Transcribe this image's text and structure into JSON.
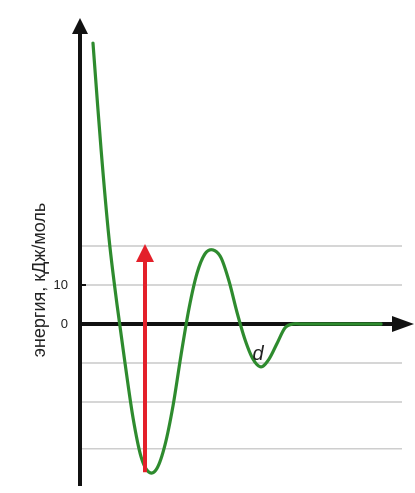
{
  "chart_data": {
    "type": "line",
    "ylabel": "энергия, кДж/моль",
    "xlabel": "d",
    "ytick_labels": [
      {
        "value": 10,
        "label": "10"
      },
      {
        "value": 0,
        "label": "0"
      }
    ],
    "gridlines_y": [
      20,
      10,
      -10,
      -20,
      -32
    ],
    "ylim": [
      -40,
      78
    ],
    "series": [
      {
        "color": "#2e8b2e",
        "x": [
          0.0,
          0.2,
          0.4,
          0.6,
          0.8,
          1.0,
          1.2,
          1.4,
          1.6,
          1.8,
          2.0,
          2.2,
          2.4,
          2.6,
          2.8,
          3.0,
          3.2,
          3.4,
          3.6,
          3.8,
          4.0,
          4.2,
          4.4,
          4.6,
          4.8,
          5.0,
          5.2,
          5.4,
          5.6,
          5.8,
          6.0,
          6.2,
          6.4,
          6.6,
          6.8,
          7.0,
          7.2
        ],
        "y": [
          72,
          45,
          22,
          5,
          -10,
          -24,
          -34,
          -38,
          -37,
          -31,
          -21,
          -8,
          4,
          13,
          18,
          19,
          17,
          11,
          3,
          -4,
          -9,
          -11,
          -9,
          -5,
          -1,
          0,
          0,
          0,
          0,
          0,
          0,
          0,
          0,
          0,
          0,
          0,
          0
        ]
      }
    ],
    "arrow": {
      "color": "#e3202a",
      "x": 1.3,
      "y_from": -38,
      "y_to": 20
    }
  }
}
